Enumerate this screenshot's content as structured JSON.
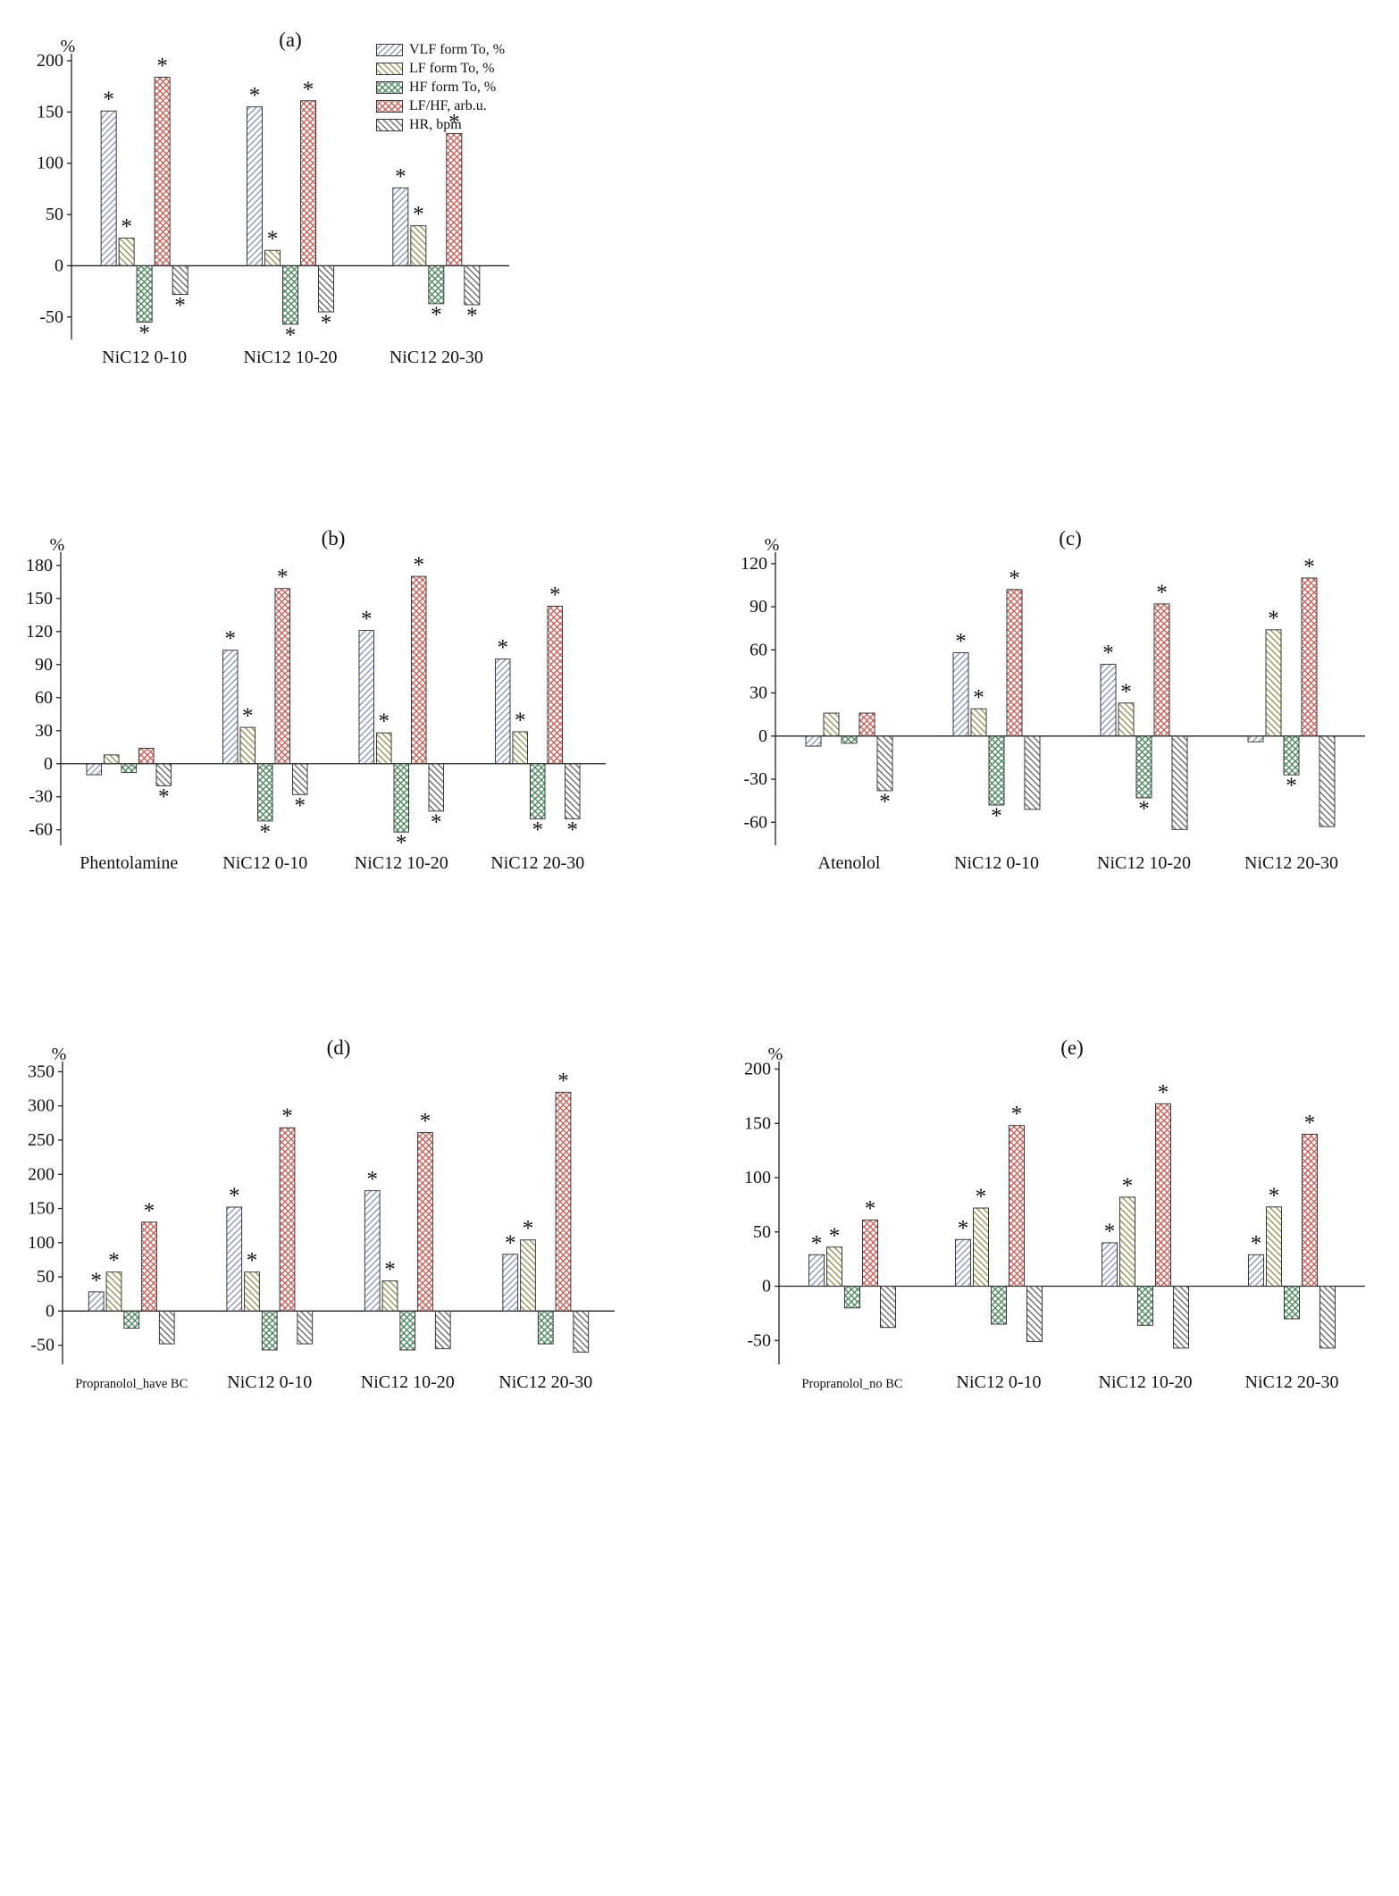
{
  "page": {
    "background": "#ffffff",
    "axis_color": "#222222",
    "text_color": "#111111"
  },
  "legend": {
    "position": "top-right-of-panel-a"
  },
  "series_styles": [
    {
      "name": "VLF form To, %",
      "color": "#7d91bb",
      "pattern": "diag-up"
    },
    {
      "name": "LF form To, %",
      "color": "#8f8a45",
      "pattern": "diag-down"
    },
    {
      "name": "HF form To, %",
      "color": "#3e8152",
      "pattern": "cross"
    },
    {
      "name": "LF/HF, arb.u.",
      "color": "#c9544a",
      "pattern": "cross"
    },
    {
      "name": "HR, bpm",
      "color": "#5f5f5f",
      "pattern": "diag-down"
    }
  ],
  "chart_data": [
    {
      "id": "a",
      "type": "bar",
      "panel_label": "(a)",
      "ylabel": "%",
      "yticks": [
        -50,
        0,
        50,
        100,
        150,
        200
      ],
      "yrange": [
        -72,
        207
      ],
      "grid": false,
      "categories": [
        "NiC12 0-10",
        "NiC12 10-20",
        "NiC12 20-30"
      ],
      "series": [
        {
          "name": "VLF form To, %",
          "values": [
            151,
            155,
            76
          ],
          "sig": [
            true,
            true,
            true
          ]
        },
        {
          "name": "LF form To, %",
          "values": [
            27,
            15,
            39
          ],
          "sig": [
            true,
            true,
            true
          ]
        },
        {
          "name": "HF form To, %",
          "values": [
            -55,
            -57,
            -37
          ],
          "sig": [
            true,
            true,
            true
          ]
        },
        {
          "name": "LF/HF, arb.u.",
          "values": [
            184,
            161,
            129
          ],
          "sig": [
            true,
            true,
            true
          ]
        },
        {
          "name": "HR, bpm",
          "values": [
            -28,
            -45,
            -38
          ],
          "sig": [
            true,
            true,
            true
          ]
        }
      ]
    },
    {
      "id": "b",
      "type": "bar",
      "panel_label": "(b)",
      "ylabel": "%",
      "yticks": [
        -60,
        -30,
        0,
        30,
        60,
        90,
        120,
        150,
        180
      ],
      "yrange": [
        -74,
        192
      ],
      "grid": false,
      "categories": [
        "Phentolamine",
        "NiC12 0-10",
        "NiC12 10-20",
        "NiC12 20-30"
      ],
      "series": [
        {
          "name": "VLF form To, %",
          "values": [
            -10,
            103,
            121,
            95
          ],
          "sig": [
            false,
            true,
            true,
            true
          ]
        },
        {
          "name": "LF form To, %",
          "values": [
            8,
            33,
            28,
            29
          ],
          "sig": [
            false,
            true,
            true,
            true
          ]
        },
        {
          "name": "HF form To, %",
          "values": [
            -8,
            -52,
            -62,
            -50
          ],
          "sig": [
            false,
            true,
            true,
            true
          ]
        },
        {
          "name": "LF/HF, arb.u.",
          "values": [
            14,
            159,
            170,
            143
          ],
          "sig": [
            false,
            true,
            true,
            true
          ]
        },
        {
          "name": "HR, bpm",
          "values": [
            -20,
            -28,
            -43,
            -50
          ],
          "sig": [
            true,
            true,
            true,
            true
          ]
        }
      ]
    },
    {
      "id": "c",
      "type": "bar",
      "panel_label": "(c)",
      "ylabel": "%",
      "yticks": [
        -60,
        -30,
        0,
        30,
        60,
        90,
        120
      ],
      "yrange": [
        -76,
        128
      ],
      "grid": false,
      "categories": [
        "Atenolol",
        "NiC12 0-10",
        "NiC12 10-20",
        "NiC12 20-30"
      ],
      "series": [
        {
          "name": "VLF form To, %",
          "values": [
            -7,
            58,
            50,
            -4
          ],
          "sig": [
            false,
            true,
            true,
            false
          ]
        },
        {
          "name": "LF form To, %",
          "values": [
            16,
            19,
            23,
            74
          ],
          "sig": [
            false,
            true,
            true,
            true
          ]
        },
        {
          "name": "HF form To, %",
          "values": [
            -5,
            -48,
            -43,
            -27
          ],
          "sig": [
            false,
            true,
            true,
            true
          ]
        },
        {
          "name": "LF/HF, arb.u.",
          "values": [
            16,
            102,
            92,
            110
          ],
          "sig": [
            false,
            true,
            true,
            true
          ]
        },
        {
          "name": "HR, bpm",
          "values": [
            -38,
            -51,
            -65,
            -63
          ],
          "sig": [
            true,
            false,
            false,
            false
          ]
        }
      ]
    },
    {
      "id": "d",
      "type": "bar",
      "panel_label": "(d)",
      "ylabel": "%",
      "yticks": [
        -50,
        0,
        50,
        100,
        150,
        200,
        250,
        300,
        350
      ],
      "yrange": [
        -78,
        365
      ],
      "grid": false,
      "categories": [
        "Propranolol_have BC",
        "NiC12 0-10",
        "NiC12 10-20",
        "NiC12 20-30"
      ],
      "series": [
        {
          "name": "VLF form To, %",
          "values": [
            28,
            152,
            176,
            83
          ],
          "sig": [
            true,
            true,
            true,
            true
          ]
        },
        {
          "name": "LF form To, %",
          "values": [
            57,
            57,
            44,
            104
          ],
          "sig": [
            true,
            true,
            true,
            true
          ]
        },
        {
          "name": "HF form To, %",
          "values": [
            -25,
            -57,
            -57,
            -48
          ],
          "sig": [
            false,
            false,
            false,
            false
          ]
        },
        {
          "name": "LF/HF, arb.u.",
          "values": [
            130,
            268,
            261,
            320
          ],
          "sig": [
            true,
            true,
            true,
            true
          ]
        },
        {
          "name": "HR, bpm",
          "values": [
            -48,
            -48,
            -55,
            -60
          ],
          "sig": [
            false,
            false,
            false,
            false
          ]
        }
      ]
    },
    {
      "id": "e",
      "type": "bar",
      "panel_label": "(e)",
      "ylabel": "%",
      "yticks": [
        -50,
        0,
        50,
        100,
        150,
        200
      ],
      "yrange": [
        -72,
        207
      ],
      "grid": false,
      "categories": [
        "Propranolol_no BC",
        "NiC12 0-10",
        "NiC12 10-20",
        "NiC12 20-30"
      ],
      "series": [
        {
          "name": "VLF form To, %",
          "values": [
            29,
            43,
            40,
            29
          ],
          "sig": [
            true,
            true,
            true,
            true
          ]
        },
        {
          "name": "LF form To, %",
          "values": [
            36,
            72,
            82,
            73
          ],
          "sig": [
            true,
            true,
            true,
            true
          ]
        },
        {
          "name": "HF form To, %",
          "values": [
            -20,
            -35,
            -36,
            -30
          ],
          "sig": [
            false,
            false,
            false,
            false
          ]
        },
        {
          "name": "LF/HF, arb.u.",
          "values": [
            61,
            148,
            168,
            140
          ],
          "sig": [
            true,
            true,
            true,
            true
          ]
        },
        {
          "name": "HR, bpm",
          "values": [
            -38,
            -51,
            -57,
            -57
          ],
          "sig": [
            false,
            false,
            false,
            false
          ]
        }
      ]
    }
  ]
}
